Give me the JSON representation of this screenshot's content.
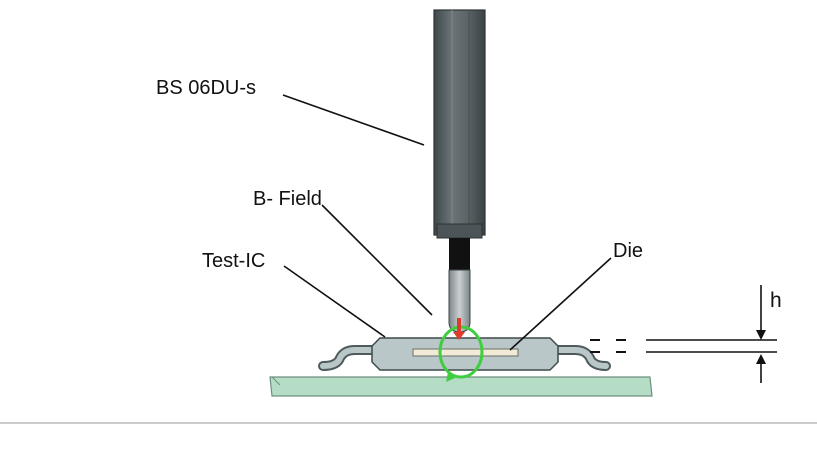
{
  "labels": {
    "probe": "BS 06DU-s",
    "b_field": "B- Field",
    "test_ic": "Test-IC",
    "die": "Die",
    "height": "h"
  },
  "colors": {
    "probe_body": "#5a6467",
    "probe_tip": "#0d0d0d",
    "ic_package": "#b9c7c9",
    "pcb": "#b5ddc5",
    "field_loop": "#3fce3f",
    "field_arrow": "#e23b2c",
    "die": "#f1ead6"
  }
}
